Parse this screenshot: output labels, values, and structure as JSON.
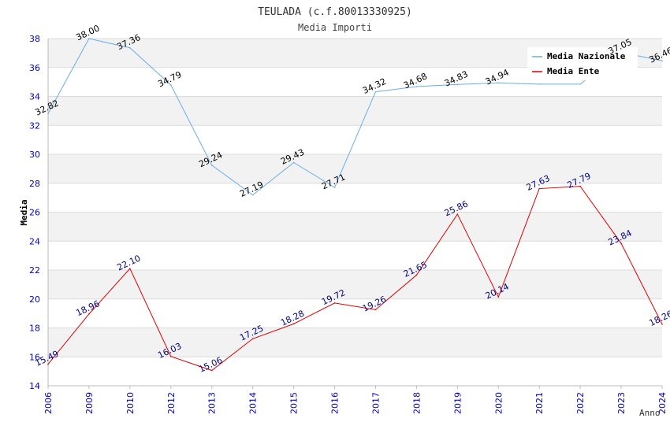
{
  "chart_data": {
    "type": "line",
    "title": "TEULADA (c.f.80013330925)",
    "subtitle": "Media Importi",
    "xlabel": "Anno",
    "ylabel": "Media",
    "ylim": [
      14,
      38
    ],
    "ytick_step": 2,
    "categories": [
      "2006",
      "2009",
      "2010",
      "2012",
      "2013",
      "2014",
      "2015",
      "2016",
      "2017",
      "2018",
      "2019",
      "2020",
      "2021",
      "2022",
      "2023",
      "2024"
    ],
    "series": [
      {
        "name": "Media Nazionale",
        "color": "#6aaee8",
        "label_color": "#000000",
        "values": [
          32.82,
          38.0,
          37.36,
          34.79,
          29.24,
          27.19,
          29.43,
          27.71,
          34.32,
          34.68,
          34.83,
          34.94,
          34.85,
          34.85,
          37.05,
          36.46
        ],
        "labels": [
          "32.82",
          "38.00",
          "37.36",
          "34.79",
          "29.24",
          "27.19",
          "29.43",
          "27.71",
          "34.32",
          "34.68",
          "34.83",
          "34.94",
          "",
          "",
          "37.05",
          "36.46"
        ]
      },
      {
        "name": "Media Ente",
        "color": "#e00000",
        "label_color": "#000080",
        "values": [
          15.49,
          18.96,
          22.1,
          16.03,
          15.06,
          17.25,
          18.28,
          19.72,
          19.26,
          21.65,
          25.86,
          20.14,
          27.63,
          27.79,
          23.84,
          18.26
        ],
        "labels": [
          "15.49",
          "18.96",
          "22.10",
          "16.03",
          "15.06",
          "17.25",
          "18.28",
          "19.72",
          "19.26",
          "21.65",
          "25.86",
          "20.14",
          "27.63",
          "27.79",
          "23.84",
          "18.26"
        ]
      }
    ],
    "legend_position": "top-right",
    "grid": true,
    "band_color": "#f2f2f2",
    "tick_color": "#0000cc"
  }
}
